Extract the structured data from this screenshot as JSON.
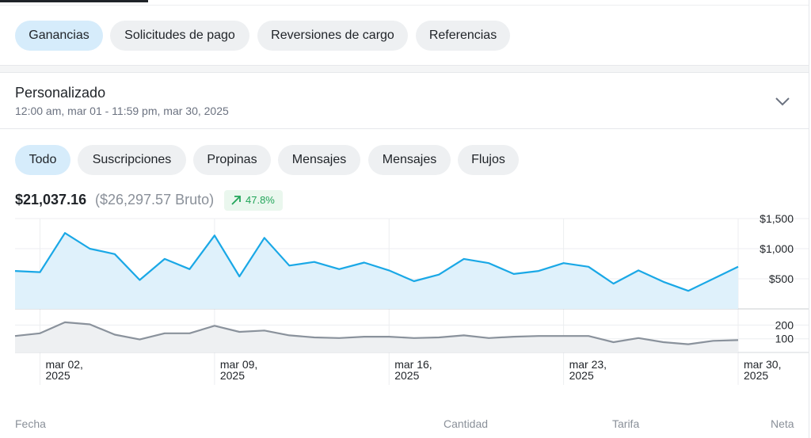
{
  "top_tabs": [
    {
      "label": "Ganancias",
      "active": true
    },
    {
      "label": "Solicitudes de pago",
      "active": false
    },
    {
      "label": "Reversiones de cargo",
      "active": false
    },
    {
      "label": "Referencias",
      "active": false
    }
  ],
  "date_range": {
    "title": "Personalizado",
    "subtitle": "12:00 am, mar 01 - 11:59 pm, mar 30, 2025",
    "chevron_icon": "chevron-down-icon"
  },
  "filter_tabs": [
    {
      "label": "Todo",
      "active": true
    },
    {
      "label": "Suscripciones",
      "active": false
    },
    {
      "label": "Propinas",
      "active": false
    },
    {
      "label": "Mensajes",
      "active": false
    },
    {
      "label": "Mensajes",
      "active": false
    },
    {
      "label": "Flujos",
      "active": false
    }
  ],
  "summary": {
    "net": "$21,037.16",
    "gross": "($26,297.57 Bruto)",
    "change": "47.8%",
    "change_icon": "arrow-up-right-icon"
  },
  "chart_data": [
    {
      "type": "area",
      "color": "#1aa8e6",
      "y_ticks": [
        "$1,500",
        "$1,000",
        "$500"
      ],
      "y_tick_values": [
        1500,
        1000,
        500
      ],
      "ylim": [
        0,
        1500
      ],
      "x": [
        "mar 01",
        "mar 02",
        "mar 03",
        "mar 04",
        "mar 05",
        "mar 06",
        "mar 07",
        "mar 08",
        "mar 09",
        "mar 10",
        "mar 11",
        "mar 12",
        "mar 13",
        "mar 14",
        "mar 15",
        "mar 16",
        "mar 17",
        "mar 18",
        "mar 19",
        "mar 20",
        "mar 21",
        "mar 22",
        "mar 23",
        "mar 24",
        "mar 25",
        "mar 26",
        "mar 27",
        "mar 28",
        "mar 29",
        "mar 30"
      ],
      "values": [
        630,
        610,
        1260,
        1000,
        910,
        480,
        830,
        660,
        1220,
        540,
        1180,
        720,
        780,
        660,
        770,
        640,
        460,
        570,
        830,
        760,
        580,
        630,
        760,
        700,
        420,
        640,
        450,
        300,
        500,
        700
      ]
    },
    {
      "type": "area",
      "color": "#8a929c",
      "y_ticks": [
        "200",
        "100"
      ],
      "y_tick_values": [
        200,
        100
      ],
      "ylim": [
        0,
        260
      ],
      "x": [
        "mar 01",
        "mar 02",
        "mar 03",
        "mar 04",
        "mar 05",
        "mar 06",
        "mar 07",
        "mar 08",
        "mar 09",
        "mar 10",
        "mar 11",
        "mar 12",
        "mar 13",
        "mar 14",
        "mar 15",
        "mar 16",
        "mar 17",
        "mar 18",
        "mar 19",
        "mar 20",
        "mar 21",
        "mar 22",
        "mar 23",
        "mar 24",
        "mar 25",
        "mar 26",
        "mar 27",
        "mar 28",
        "mar 29",
        "mar 30"
      ],
      "values": [
        120,
        140,
        220,
        205,
        130,
        95,
        140,
        140,
        195,
        150,
        160,
        125,
        110,
        105,
        115,
        115,
        105,
        110,
        125,
        105,
        115,
        120,
        120,
        120,
        75,
        105,
        75,
        60,
        85,
        90
      ]
    }
  ],
  "x_axis": {
    "labels": [
      {
        "day": "mar 02,",
        "year": "2025",
        "index": 1
      },
      {
        "day": "mar 09,",
        "year": "2025",
        "index": 8
      },
      {
        "day": "mar 16,",
        "year": "2025",
        "index": 15
      },
      {
        "day": "mar 23,",
        "year": "2025",
        "index": 22
      },
      {
        "day": "mar 30,",
        "year": "2025",
        "index": 29
      }
    ]
  },
  "table_headers": [
    "Fecha",
    "Cantidad",
    "Tarifa",
    "Neta"
  ]
}
